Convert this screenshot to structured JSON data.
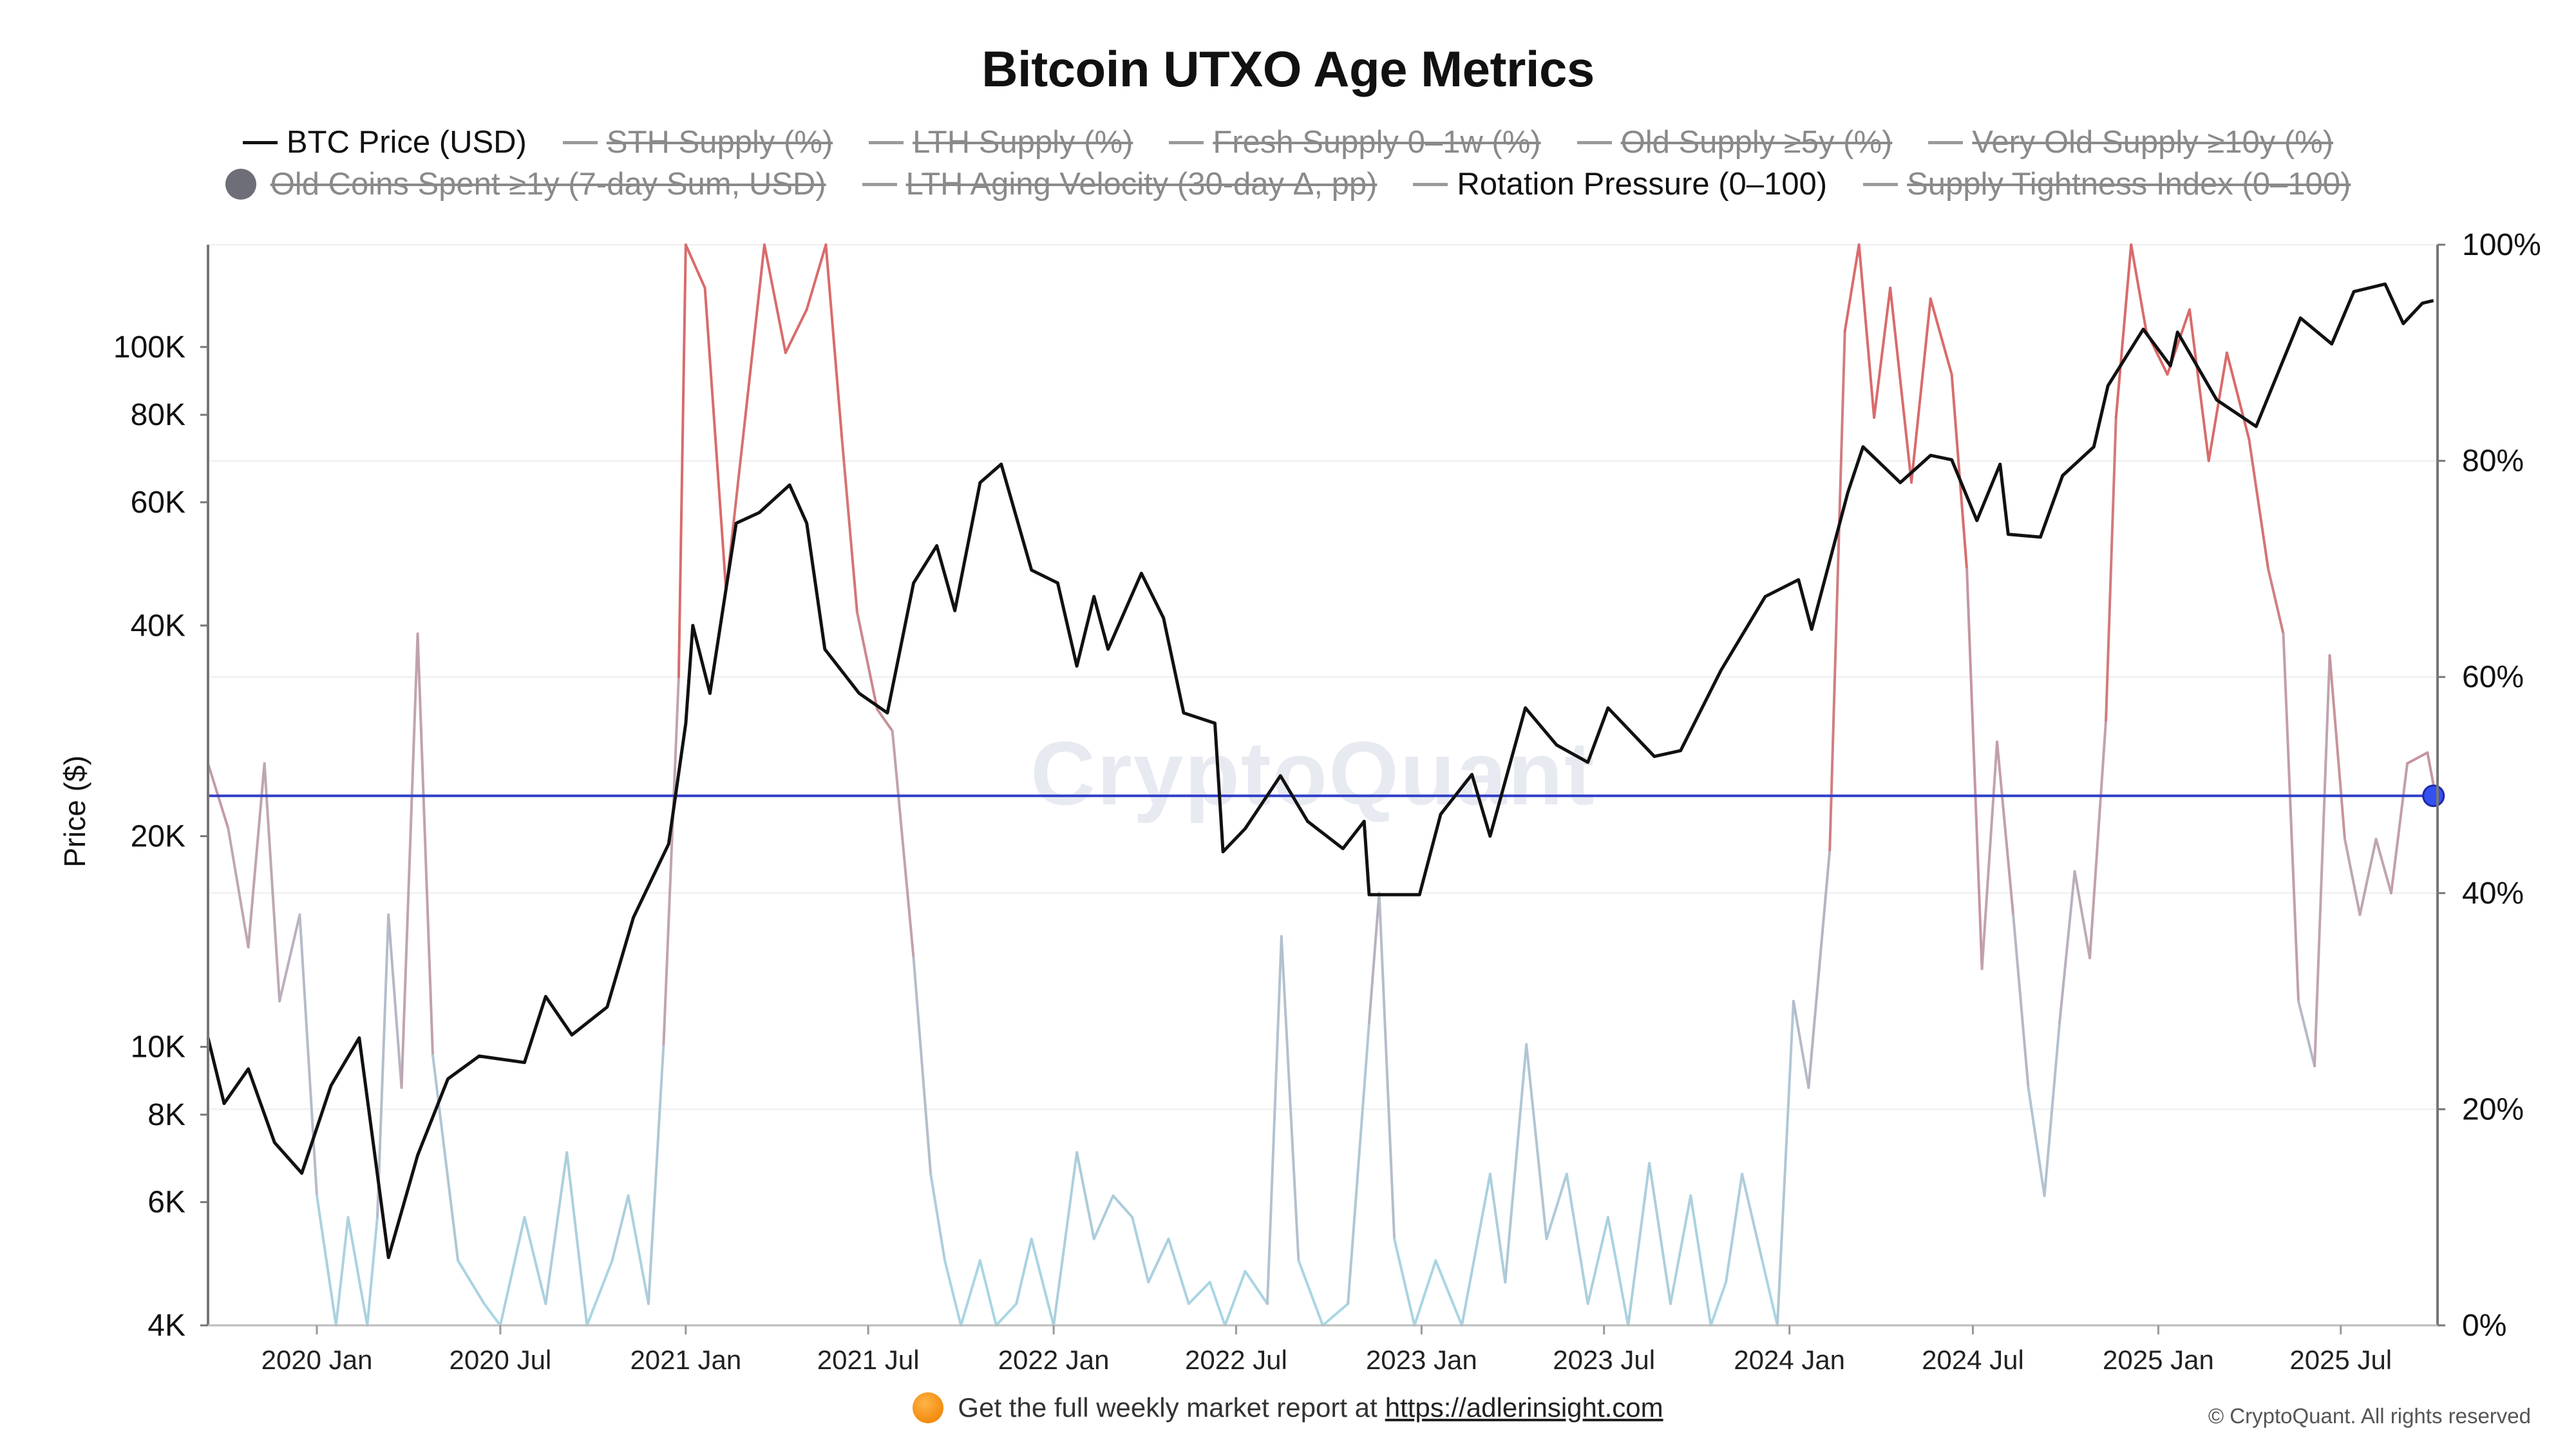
{
  "chart_data": {
    "type": "line",
    "title": "Bitcoin UTXO Age Metrics",
    "ylabel": "Price ($)",
    "y_scale": "log",
    "ylim": [
      4000,
      140000
    ],
    "y2lim": [
      0,
      100
    ],
    "x_range": [
      "2019-09-15",
      "2025-10-05"
    ],
    "y_ticks": [
      {
        "value": 4000,
        "label": "4K"
      },
      {
        "value": 6000,
        "label": "6K"
      },
      {
        "value": 8000,
        "label": "8K"
      },
      {
        "value": 10000,
        "label": "10K"
      },
      {
        "value": 20000,
        "label": "20K"
      },
      {
        "value": 40000,
        "label": "40K"
      },
      {
        "value": 60000,
        "label": "60K"
      },
      {
        "value": 80000,
        "label": "80K"
      },
      {
        "value": 100000,
        "label": "100K"
      }
    ],
    "y2_ticks": [
      {
        "value": 0,
        "label": "0%"
      },
      {
        "value": 20,
        "label": "20%"
      },
      {
        "value": 40,
        "label": "40%"
      },
      {
        "value": 60,
        "label": "60%"
      },
      {
        "value": 80,
        "label": "80%"
      },
      {
        "value": 100,
        "label": "100%"
      }
    ],
    "x_ticks": [
      {
        "date": "2020-01-01",
        "label": "2020 Jan"
      },
      {
        "date": "2020-07-01",
        "label": "2020 Jul"
      },
      {
        "date": "2021-01-01",
        "label": "2021 Jan"
      },
      {
        "date": "2021-07-01",
        "label": "2021 Jul"
      },
      {
        "date": "2022-01-01",
        "label": "2022 Jan"
      },
      {
        "date": "2022-07-01",
        "label": "2022 Jul"
      },
      {
        "date": "2023-01-01",
        "label": "2023 Jan"
      },
      {
        "date": "2023-07-01",
        "label": "2023 Jul"
      },
      {
        "date": "2024-01-01",
        "label": "2024 Jan"
      },
      {
        "date": "2024-07-01",
        "label": "2024 Jul"
      },
      {
        "date": "2025-01-01",
        "label": "2025 Jan"
      },
      {
        "date": "2025-07-01",
        "label": "2025 Jul"
      }
    ],
    "series": [
      {
        "name": "BTC Price (USD)",
        "axis": "left",
        "color": "#111111",
        "points": [
          [
            "2019-09-15",
            10300
          ],
          [
            "2019-10-01",
            8300
          ],
          [
            "2019-10-25",
            9300
          ],
          [
            "2019-11-20",
            7300
          ],
          [
            "2019-12-17",
            6600
          ],
          [
            "2020-01-15",
            8800
          ],
          [
            "2020-02-12",
            10300
          ],
          [
            "2020-03-12",
            5000
          ],
          [
            "2020-04-10",
            7000
          ],
          [
            "2020-05-10",
            9000
          ],
          [
            "2020-06-10",
            9700
          ],
          [
            "2020-07-25",
            9500
          ],
          [
            "2020-08-15",
            11800
          ],
          [
            "2020-09-10",
            10400
          ],
          [
            "2020-10-15",
            11400
          ],
          [
            "2020-11-10",
            15300
          ],
          [
            "2020-12-15",
            19500
          ],
          [
            "2021-01-01",
            29000
          ],
          [
            "2021-01-08",
            40000
          ],
          [
            "2021-01-25",
            32000
          ],
          [
            "2021-02-20",
            56000
          ],
          [
            "2021-03-15",
            58000
          ],
          [
            "2021-04-14",
            63500
          ],
          [
            "2021-05-01",
            56000
          ],
          [
            "2021-05-19",
            37000
          ],
          [
            "2021-06-22",
            32000
          ],
          [
            "2021-07-20",
            30000
          ],
          [
            "2021-08-15",
            46000
          ],
          [
            "2021-09-07",
            52000
          ],
          [
            "2021-09-25",
            42000
          ],
          [
            "2021-10-20",
            64000
          ],
          [
            "2021-11-10",
            68000
          ],
          [
            "2021-12-10",
            48000
          ],
          [
            "2022-01-05",
            46000
          ],
          [
            "2022-01-24",
            35000
          ],
          [
            "2022-02-10",
            44000
          ],
          [
            "2022-02-24",
            37000
          ],
          [
            "2022-03-29",
            47500
          ],
          [
            "2022-04-20",
            41000
          ],
          [
            "2022-05-10",
            30000
          ],
          [
            "2022-06-10",
            29000
          ],
          [
            "2022-06-18",
            19000
          ],
          [
            "2022-07-10",
            20500
          ],
          [
            "2022-08-14",
            24400
          ],
          [
            "2022-09-10",
            21000
          ],
          [
            "2022-10-15",
            19200
          ],
          [
            "2022-11-05",
            21000
          ],
          [
            "2022-11-10",
            16500
          ],
          [
            "2022-12-30",
            16500
          ],
          [
            "2023-01-20",
            21500
          ],
          [
            "2023-02-20",
            24500
          ],
          [
            "2023-03-10",
            20000
          ],
          [
            "2023-04-14",
            30500
          ],
          [
            "2023-05-15",
            27000
          ],
          [
            "2023-06-15",
            25500
          ],
          [
            "2023-07-05",
            30500
          ],
          [
            "2023-08-20",
            26000
          ],
          [
            "2023-09-15",
            26500
          ],
          [
            "2023-10-25",
            34500
          ],
          [
            "2023-12-08",
            44000
          ],
          [
            "2024-01-10",
            46500
          ],
          [
            "2024-01-23",
            39500
          ],
          [
            "2024-02-28",
            62000
          ],
          [
            "2024-03-14",
            72000
          ],
          [
            "2024-04-20",
            64000
          ],
          [
            "2024-05-20",
            70000
          ],
          [
            "2024-06-10",
            69000
          ],
          [
            "2024-07-05",
            56500
          ],
          [
            "2024-07-28",
            68000
          ],
          [
            "2024-08-05",
            54000
          ],
          [
            "2024-09-06",
            53500
          ],
          [
            "2024-09-28",
            65500
          ],
          [
            "2024-10-29",
            72000
          ],
          [
            "2024-11-12",
            88000
          ],
          [
            "2024-12-17",
            106000
          ],
          [
            "2025-01-13",
            94000
          ],
          [
            "2025-01-20",
            105000
          ],
          [
            "2025-02-28",
            84000
          ],
          [
            "2025-04-08",
            77000
          ],
          [
            "2025-05-22",
            110000
          ],
          [
            "2025-06-22",
            101000
          ],
          [
            "2025-07-14",
            120000
          ],
          [
            "2025-08-14",
            123000
          ],
          [
            "2025-09-01",
            108000
          ],
          [
            "2025-09-20",
            115500
          ],
          [
            "2025-10-01",
            116500
          ]
        ]
      },
      {
        "name": "Rotation Pressure (0–100)",
        "axis": "right",
        "color": "#a8d8e6",
        "color_high": "#d96b6b",
        "points": [
          [
            "2019-09-15",
            52
          ],
          [
            "2019-10-05",
            46
          ],
          [
            "2019-10-25",
            35
          ],
          [
            "2019-11-10",
            52
          ],
          [
            "2019-11-25",
            30
          ],
          [
            "2019-12-15",
            38
          ],
          [
            "2020-01-01",
            12
          ],
          [
            "2020-01-20",
            0
          ],
          [
            "2020-02-01",
            10
          ],
          [
            "2020-02-20",
            0
          ],
          [
            "2020-03-01",
            10
          ],
          [
            "2020-03-12",
            38
          ],
          [
            "2020-03-25",
            22
          ],
          [
            "2020-04-10",
            64
          ],
          [
            "2020-04-25",
            25
          ],
          [
            "2020-05-20",
            6
          ],
          [
            "2020-06-15",
            2
          ],
          [
            "2020-07-01",
            0
          ],
          [
            "2020-07-25",
            10
          ],
          [
            "2020-08-15",
            2
          ],
          [
            "2020-09-05",
            16
          ],
          [
            "2020-09-25",
            0
          ],
          [
            "2020-10-20",
            6
          ],
          [
            "2020-11-05",
            12
          ],
          [
            "2020-11-25",
            2
          ],
          [
            "2020-12-10",
            26
          ],
          [
            "2020-12-25",
            60
          ],
          [
            "2021-01-01",
            100
          ],
          [
            "2021-01-20",
            96
          ],
          [
            "2021-02-10",
            68
          ],
          [
            "2021-03-01",
            84
          ],
          [
            "2021-03-20",
            100
          ],
          [
            "2021-04-10",
            90
          ],
          [
            "2021-05-01",
            94
          ],
          [
            "2021-05-20",
            100
          ],
          [
            "2021-06-05",
            82
          ],
          [
            "2021-06-20",
            66
          ],
          [
            "2021-07-10",
            57
          ],
          [
            "2021-07-25",
            55
          ],
          [
            "2021-08-15",
            34
          ],
          [
            "2021-09-01",
            14
          ],
          [
            "2021-09-15",
            6
          ],
          [
            "2021-10-01",
            0
          ],
          [
            "2021-10-20",
            6
          ],
          [
            "2021-11-05",
            0
          ],
          [
            "2021-11-25",
            2
          ],
          [
            "2021-12-10",
            8
          ],
          [
            "2022-01-01",
            0
          ],
          [
            "2022-01-24",
            16
          ],
          [
            "2022-02-10",
            8
          ],
          [
            "2022-03-01",
            12
          ],
          [
            "2022-03-20",
            10
          ],
          [
            "2022-04-05",
            4
          ],
          [
            "2022-04-25",
            8
          ],
          [
            "2022-05-15",
            2
          ],
          [
            "2022-06-05",
            4
          ],
          [
            "2022-06-20",
            0
          ],
          [
            "2022-07-10",
            5
          ],
          [
            "2022-08-01",
            2
          ],
          [
            "2022-08-15",
            36
          ],
          [
            "2022-09-01",
            6
          ],
          [
            "2022-09-25",
            0
          ],
          [
            "2022-10-20",
            2
          ],
          [
            "2022-11-10",
            28
          ],
          [
            "2022-11-20",
            40
          ],
          [
            "2022-12-05",
            8
          ],
          [
            "2022-12-25",
            0
          ],
          [
            "2023-01-15",
            6
          ],
          [
            "2023-02-10",
            0
          ],
          [
            "2023-03-10",
            14
          ],
          [
            "2023-03-25",
            4
          ],
          [
            "2023-04-15",
            26
          ],
          [
            "2023-05-05",
            8
          ],
          [
            "2023-05-25",
            14
          ],
          [
            "2023-06-15",
            2
          ],
          [
            "2023-07-05",
            10
          ],
          [
            "2023-07-25",
            0
          ],
          [
            "2023-08-15",
            15
          ],
          [
            "2023-09-05",
            2
          ],
          [
            "2023-09-25",
            12
          ],
          [
            "2023-10-15",
            0
          ],
          [
            "2023-10-30",
            4
          ],
          [
            "2023-11-15",
            14
          ],
          [
            "2023-12-05",
            6
          ],
          [
            "2023-12-20",
            0
          ],
          [
            "2024-01-05",
            30
          ],
          [
            "2024-01-20",
            22
          ],
          [
            "2024-02-10",
            44
          ],
          [
            "2024-02-25",
            92
          ],
          [
            "2024-03-10",
            100
          ],
          [
            "2024-03-25",
            84
          ],
          [
            "2024-04-10",
            96
          ],
          [
            "2024-05-01",
            78
          ],
          [
            "2024-05-20",
            95
          ],
          [
            "2024-06-10",
            88
          ],
          [
            "2024-06-25",
            70
          ],
          [
            "2024-07-10",
            33
          ],
          [
            "2024-07-25",
            54
          ],
          [
            "2024-08-10",
            38
          ],
          [
            "2024-08-25",
            22
          ],
          [
            "2024-09-10",
            12
          ],
          [
            "2024-09-25",
            28
          ],
          [
            "2024-10-10",
            42
          ],
          [
            "2024-10-25",
            34
          ],
          [
            "2024-11-10",
            56
          ],
          [
            "2024-11-20",
            84
          ],
          [
            "2024-12-05",
            100
          ],
          [
            "2024-12-20",
            92
          ],
          [
            "2025-01-10",
            88
          ],
          [
            "2025-02-01",
            94
          ],
          [
            "2025-02-20",
            80
          ],
          [
            "2025-03-10",
            90
          ],
          [
            "2025-04-01",
            82
          ],
          [
            "2025-04-20",
            70
          ],
          [
            "2025-05-05",
            64
          ],
          [
            "2025-05-20",
            30
          ],
          [
            "2025-06-05",
            24
          ],
          [
            "2025-06-20",
            62
          ],
          [
            "2025-07-05",
            45
          ],
          [
            "2025-07-20",
            38
          ],
          [
            "2025-08-05",
            45
          ],
          [
            "2025-08-20",
            40
          ],
          [
            "2025-09-05",
            52
          ],
          [
            "2025-09-25",
            53
          ],
          [
            "2025-10-01",
            50
          ]
        ]
      }
    ],
    "reference_line": {
      "value": 49,
      "axis": "right",
      "color": "#2f3fc9"
    },
    "legend_placement": "top-center"
  },
  "legend": {
    "row1": [
      {
        "label": "BTC Price (USD)",
        "color": "#111111",
        "active": true
      },
      {
        "label": "STH Supply (%)",
        "color": "#9a9a9a",
        "active": false
      },
      {
        "label": "LTH Supply (%)",
        "color": "#9a9a9a",
        "active": false
      },
      {
        "label": "Fresh Supply 0–1w (%)",
        "color": "#9a9a9a",
        "active": false
      },
      {
        "label": "Old Supply ≥5y (%)",
        "color": "#9a9a9a",
        "active": false
      },
      {
        "label": "Very Old Supply ≥10y (%)",
        "color": "#9a9a9a",
        "active": false
      }
    ],
    "row2": [
      {
        "label": "Old Coins Spent ≥1y (7-day Sum, USD)",
        "color": "#6e6e78",
        "active": false,
        "marker": "dot"
      },
      {
        "label": "LTH Aging Velocity (30-day Δ, pp)",
        "color": "#9a9a9a",
        "active": false
      },
      {
        "label": "Rotation Pressure (0–100)",
        "color": "#9a9a9a",
        "active": true
      },
      {
        "label": "Supply Tightness Index (0–100)",
        "color": "#9a9a9a",
        "active": false
      }
    ]
  },
  "watermark": "CryptoQuant",
  "footer": {
    "text": "Get the full weekly market report at",
    "link": "https://adlerinsight.com"
  },
  "copyright": "© CryptoQuant. All rights reserved"
}
